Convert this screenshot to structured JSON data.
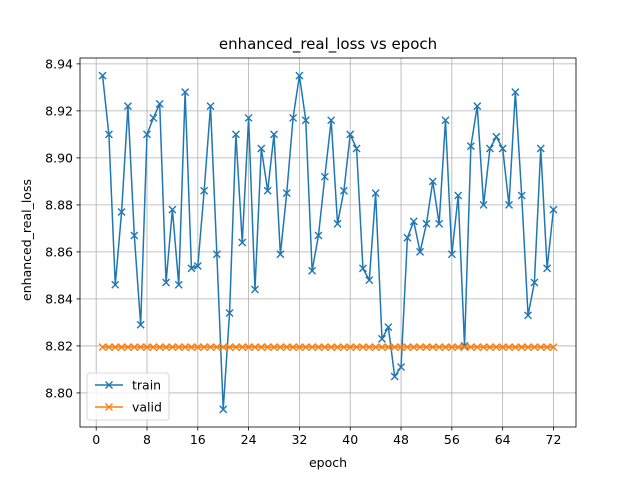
{
  "chart_data": {
    "type": "line",
    "title": "enhanced_real_loss vs epoch",
    "xlabel": "epoch",
    "ylabel": "enhanced_real_loss",
    "xlim": [
      -2.55,
      75.55
    ],
    "ylim": [
      8.7855,
      8.9425
    ],
    "xticks": [
      0,
      8,
      16,
      24,
      32,
      40,
      48,
      56,
      64,
      72
    ],
    "yticks": [
      8.8,
      8.82,
      8.84,
      8.86,
      8.88,
      8.9,
      8.92,
      8.94
    ],
    "ytick_labels": [
      "8.80",
      "8.82",
      "8.84",
      "8.86",
      "8.88",
      "8.90",
      "8.92",
      "8.94"
    ],
    "grid": true,
    "legend_position": "lower-left",
    "marker": "x",
    "x": [
      1,
      2,
      3,
      4,
      5,
      6,
      7,
      8,
      9,
      10,
      11,
      12,
      13,
      14,
      15,
      16,
      17,
      18,
      19,
      20,
      21,
      22,
      23,
      24,
      25,
      26,
      27,
      28,
      29,
      30,
      31,
      32,
      33,
      34,
      35,
      36,
      37,
      38,
      39,
      40,
      41,
      42,
      43,
      44,
      45,
      46,
      47,
      48,
      49,
      50,
      51,
      52,
      53,
      54,
      55,
      56,
      57,
      58,
      59,
      60,
      61,
      62,
      63,
      64,
      65,
      66,
      67,
      68,
      69,
      70,
      71,
      72
    ],
    "series": [
      {
        "name": "train",
        "color": "#1f77b4",
        "values": [
          8.935,
          8.91,
          8.846,
          8.877,
          8.922,
          8.867,
          8.829,
          8.91,
          8.917,
          8.923,
          8.847,
          8.878,
          8.846,
          8.928,
          8.853,
          8.854,
          8.886,
          8.922,
          8.859,
          8.793,
          8.834,
          8.91,
          8.864,
          8.917,
          8.844,
          8.904,
          8.886,
          8.91,
          8.859,
          8.885,
          8.917,
          8.935,
          8.916,
          8.852,
          8.867,
          8.892,
          8.916,
          8.872,
          8.886,
          8.91,
          8.904,
          8.853,
          8.848,
          8.885,
          8.823,
          8.828,
          8.807,
          8.811,
          8.866,
          8.873,
          8.86,
          8.872,
          8.89,
          8.872,
          8.916,
          8.859,
          8.884,
          8.82,
          8.905,
          8.922,
          8.88,
          8.904,
          8.909,
          8.904,
          8.88,
          8.928,
          8.884,
          8.833,
          8.847,
          8.904,
          8.853,
          8.878
        ]
      },
      {
        "name": "valid",
        "color": "#ff7f0e",
        "values": [
          8.8195,
          8.8195,
          8.8195,
          8.8195,
          8.8195,
          8.8195,
          8.8195,
          8.8195,
          8.8195,
          8.8195,
          8.8195,
          8.8195,
          8.8195,
          8.8195,
          8.8195,
          8.8195,
          8.8195,
          8.8195,
          8.8195,
          8.8195,
          8.8195,
          8.8195,
          8.8195,
          8.8195,
          8.8195,
          8.8195,
          8.8195,
          8.8195,
          8.8195,
          8.8195,
          8.8195,
          8.8195,
          8.8195,
          8.8195,
          8.8195,
          8.8195,
          8.8195,
          8.8195,
          8.8195,
          8.8195,
          8.8195,
          8.8195,
          8.8195,
          8.8195,
          8.8195,
          8.8195,
          8.8195,
          8.8195,
          8.8195,
          8.8195,
          8.8195,
          8.8195,
          8.8195,
          8.8195,
          8.8195,
          8.8195,
          8.8195,
          8.8195,
          8.8195,
          8.8195,
          8.8195,
          8.8195,
          8.8195,
          8.8195,
          8.8195,
          8.8195,
          8.8195,
          8.8195,
          8.8195,
          8.8195,
          8.8195,
          8.8195
        ]
      }
    ]
  }
}
